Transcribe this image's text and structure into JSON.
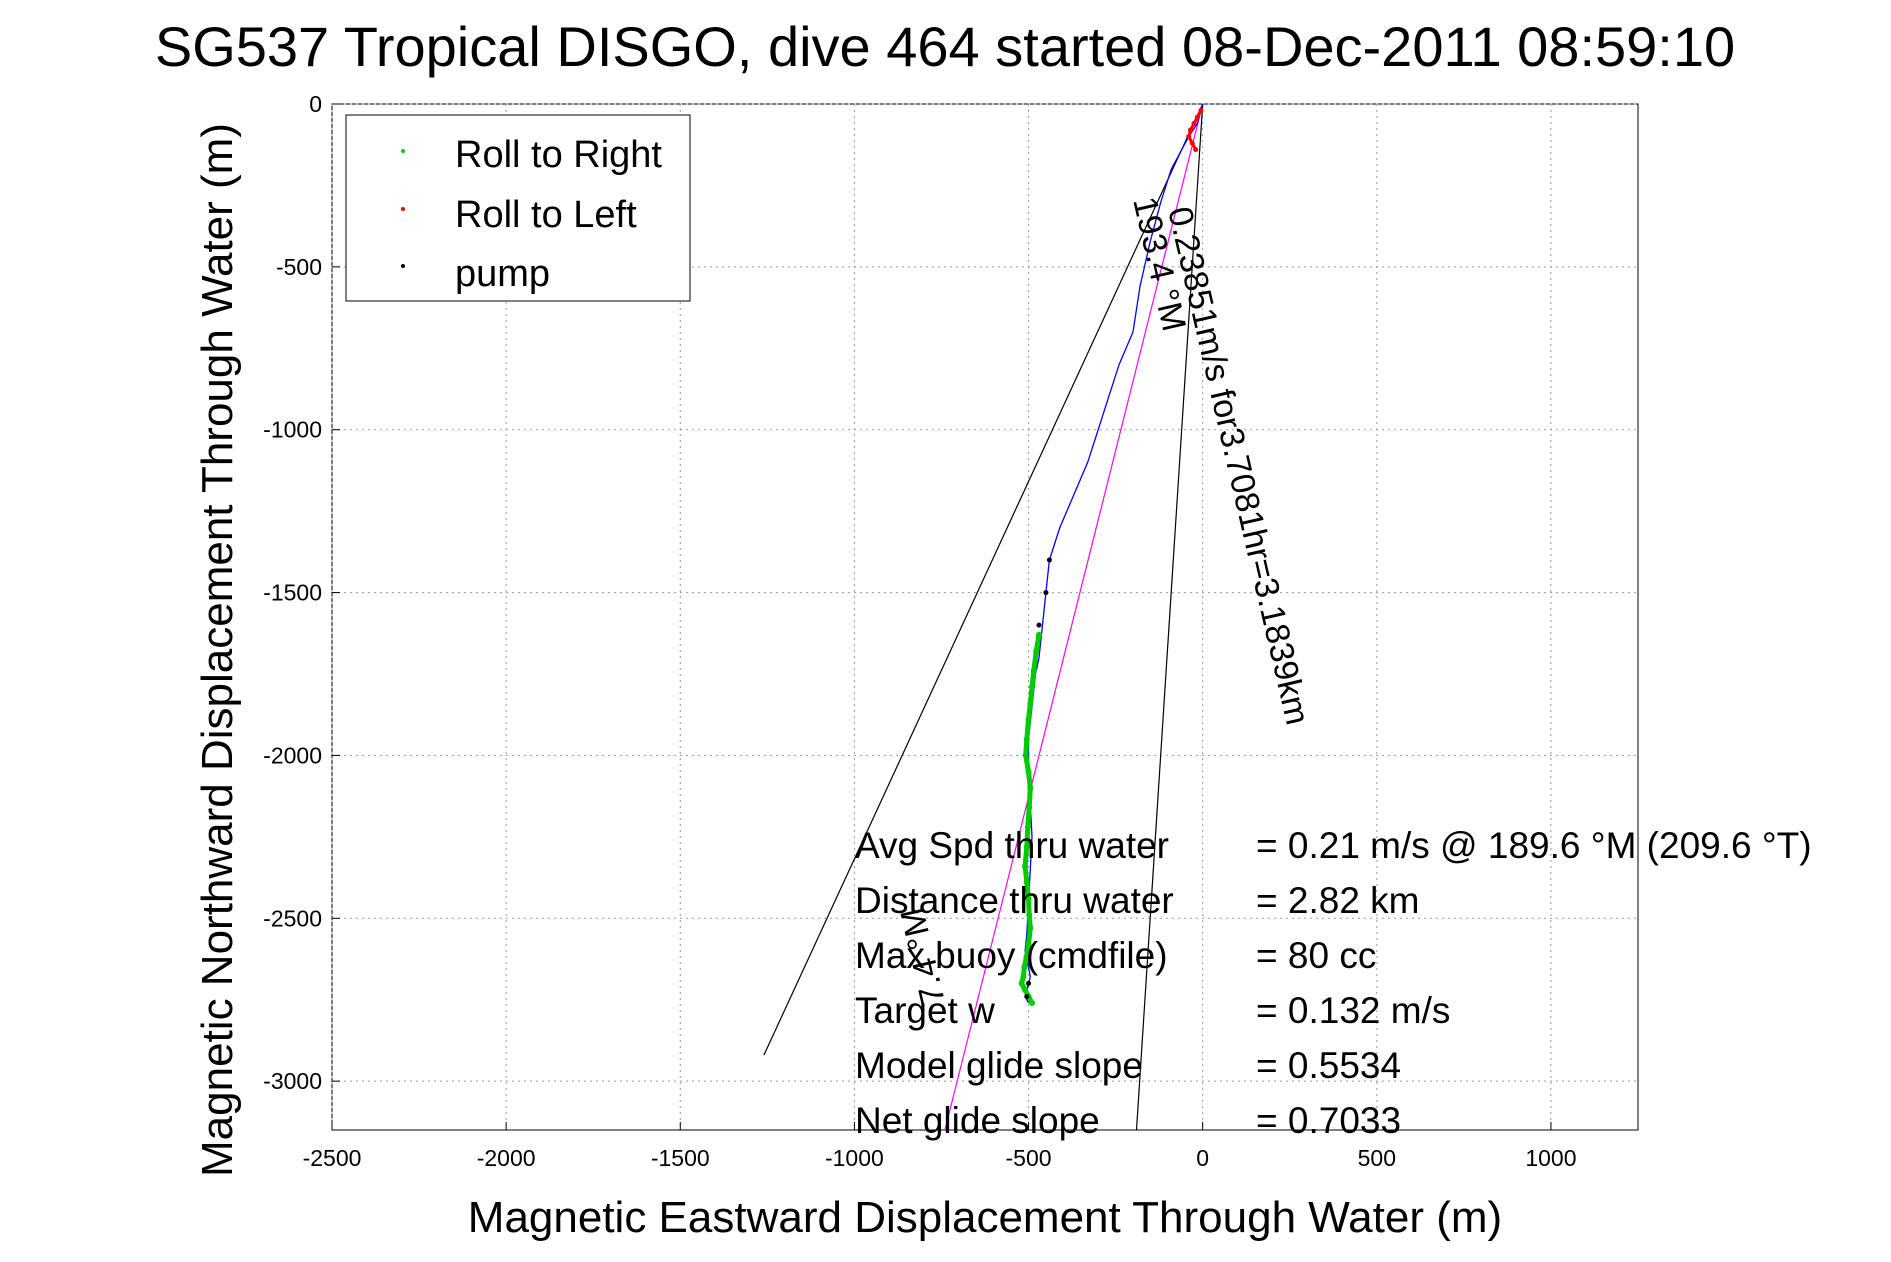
{
  "chart_data": {
    "type": "line",
    "title": "SG537 Tropical DISGO, dive 464 started 08-Dec-2011 08:59:10",
    "xlabel": "Magnetic Eastward Displacement Through Water (m)",
    "ylabel": "Magnetic Northward Displacement Through Water (m)",
    "xlim": [
      -2500,
      1250
    ],
    "ylim": [
      -3150,
      0
    ],
    "xticks": [
      -2500,
      -2000,
      -1500,
      -1000,
      -500,
      0,
      500,
      1000
    ],
    "xtick_labels": [
      "-2500",
      "-2000",
      "-1500",
      "-1000",
      "-500",
      "0",
      "500",
      "1000"
    ],
    "yticks": [
      0,
      -500,
      -1000,
      -1500,
      -2000,
      -2500,
      -3000
    ],
    "ytick_labels": [
      "0",
      "-500",
      "-1000",
      "-1500",
      "-2000",
      "-2500",
      "-3000"
    ],
    "grid": true,
    "legend_position": "top-left",
    "legend": [
      {
        "label": "Roll to Right",
        "color": "#00cc00"
      },
      {
        "label": "Roll to Left",
        "color": "#ff0000"
      },
      {
        "label": "pump",
        "color": "#000000"
      }
    ],
    "series": [
      {
        "kind": "track",
        "color": "#0000ff",
        "x": [
          0,
          -15,
          -40,
          -60,
          -90,
          -120,
          -150,
          -180,
          -200,
          -240,
          -270,
          -300,
          -330,
          -370,
          -410,
          -440,
          -450,
          -460,
          -470,
          -480,
          -490,
          -500,
          -500,
          -495,
          -490,
          -495,
          -500,
          -505,
          -510,
          -500,
          -495,
          -500,
          -505,
          -510,
          -500
        ],
        "y": [
          0,
          -60,
          -100,
          -140,
          -200,
          -300,
          -420,
          -560,
          -700,
          -800,
          -900,
          -1000,
          -1100,
          -1200,
          -1300,
          -1400,
          -1500,
          -1600,
          -1700,
          -1750,
          -1850,
          -1950,
          -2050,
          -2150,
          -2250,
          -2350,
          -2450,
          -2550,
          -2600,
          -2650,
          -2680,
          -2700,
          -2720,
          -2740,
          -2760
        ]
      },
      {
        "kind": "roll-to-right",
        "color": "#00cc00",
        "x": [
          -470,
          -478,
          -485,
          -490,
          -495,
          -500,
          -505,
          -508,
          -500,
          -495,
          -498,
          -502,
          -505,
          -510,
          -505,
          -500,
          -498,
          -495,
          -500,
          -506,
          -512,
          -515,
          -520,
          -510,
          -500,
          -490
        ],
        "y": [
          -1630,
          -1680,
          -1740,
          -1790,
          -1840,
          -1890,
          -1950,
          -2000,
          -2050,
          -2100,
          -2160,
          -2220,
          -2280,
          -2340,
          -2390,
          -2440,
          -2490,
          -2530,
          -2580,
          -2620,
          -2650,
          -2680,
          -2700,
          -2720,
          -2740,
          -2760
        ]
      },
      {
        "kind": "roll-to-left",
        "color": "#ff0000",
        "x": [
          -5,
          -15,
          -25,
          -35,
          -40,
          -30,
          -20
        ],
        "y": [
          -20,
          -40,
          -60,
          -80,
          -100,
          -120,
          -140
        ]
      },
      {
        "kind": "pump",
        "color": "#000000",
        "x": [
          -440,
          -450,
          -470,
          -500,
          -505
        ],
        "y": [
          -1400,
          -1500,
          -1600,
          -2700,
          -2740
        ]
      },
      {
        "kind": "course-line",
        "color": "#ff00ff",
        "x": [
          0,
          -740
        ],
        "y": [
          0,
          -3150
        ]
      },
      {
        "kind": "cone-edge",
        "color": "#000000",
        "x": [
          0,
          -1260
        ],
        "y": [
          0,
          -2920
        ]
      },
      {
        "kind": "cone-edge",
        "color": "#000000",
        "x": [
          0,
          -190
        ],
        "y": [
          0,
          -3150
        ]
      }
    ],
    "annotations": {
      "course_label": "0.23851m/s for3.7081hr=3.1839km",
      "heading_top": "193.4 °M",
      "heading_bottom": "7.4 °M",
      "stats_labels": [
        "Avg Spd thru water",
        "Distance thru water",
        "Max buoy (cmdfile)",
        "Target w",
        "Model glide slope",
        "Net glide slope"
      ],
      "stats_values": [
        "=  0.21 m/s @ 189.6 °M (209.6 °T)",
        "=  2.82 km",
        "= 80 cc",
        "= 0.132 m/s",
        "= 0.5534",
        "= 0.7033"
      ]
    }
  }
}
